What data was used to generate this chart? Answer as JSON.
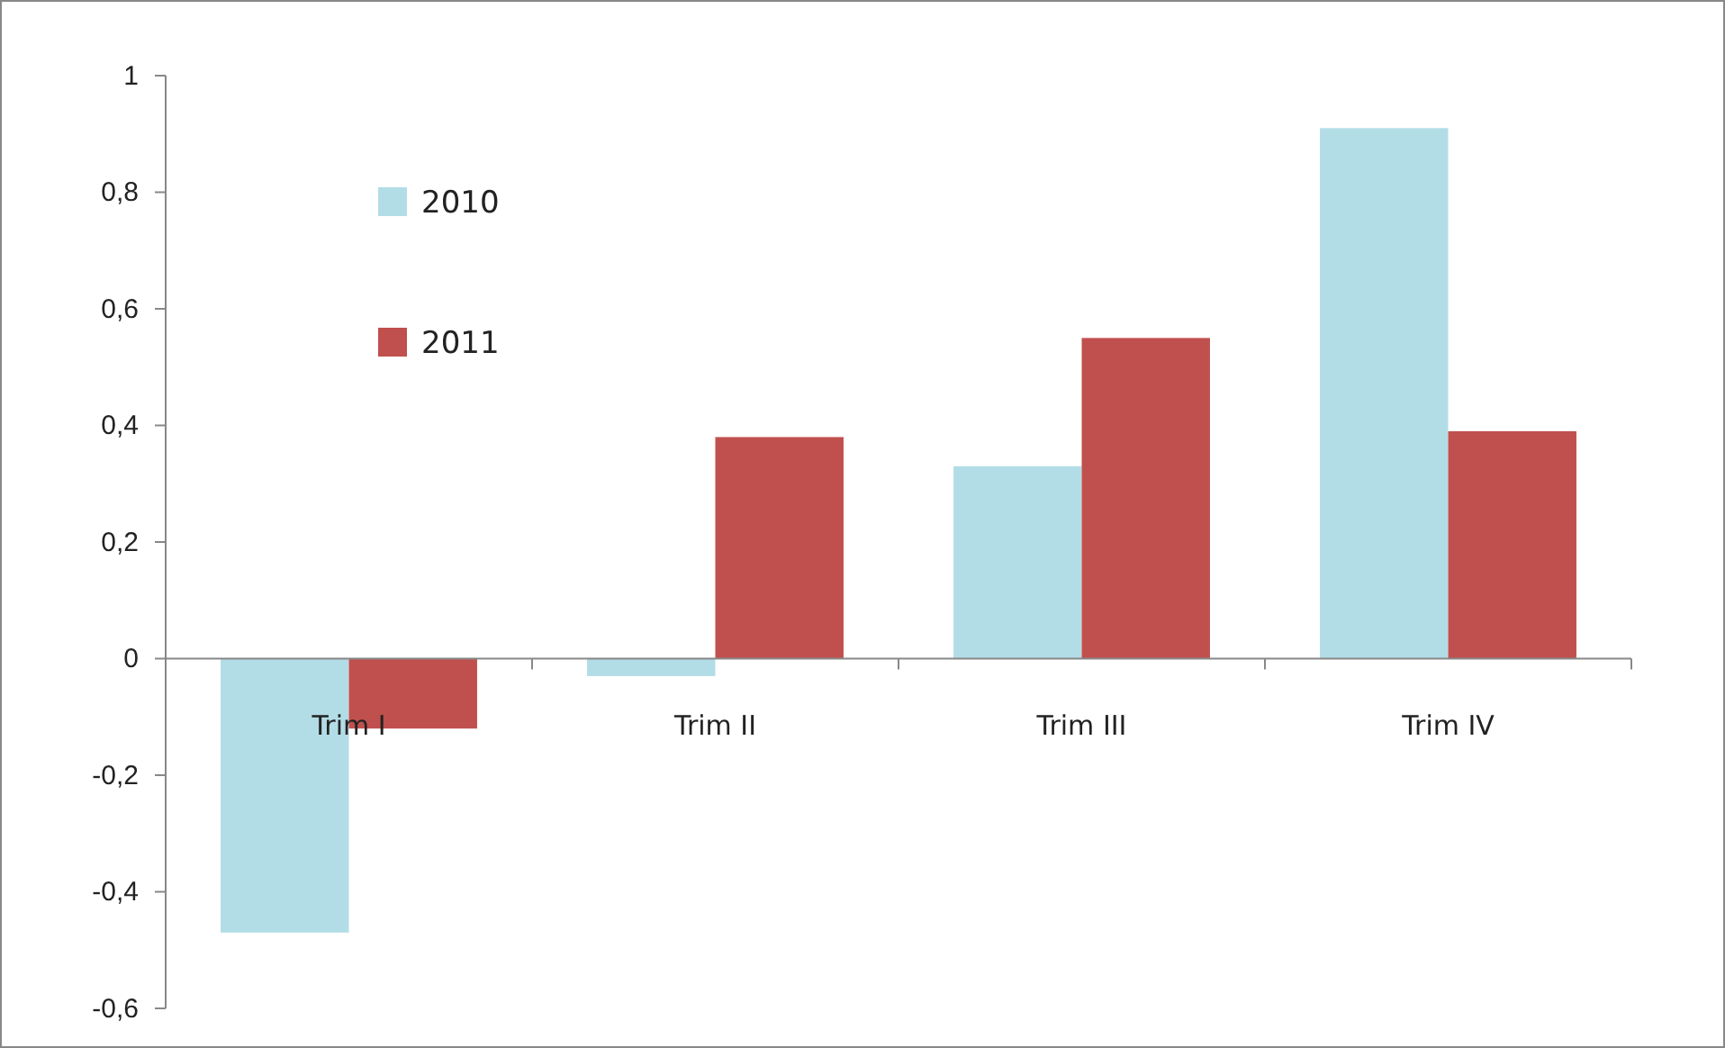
{
  "chart_data": {
    "type": "bar",
    "categories": [
      "Trim I",
      "Trim II",
      "Trim III",
      "Trim IV"
    ],
    "series": [
      {
        "name": "2010",
        "color": "#b3dde6",
        "values": [
          -0.47,
          -0.03,
          0.33,
          0.91
        ]
      },
      {
        "name": "2011",
        "color": "#c0504d",
        "values": [
          -0.12,
          0.38,
          0.55,
          0.39
        ]
      }
    ],
    "ylim": [
      -0.6,
      1
    ],
    "yticks": [
      {
        "value": -0.6,
        "label": "-0,6"
      },
      {
        "value": -0.4,
        "label": "-0,4"
      },
      {
        "value": -0.2,
        "label": "-0,2"
      },
      0,
      {
        "value": 0.2,
        "label": "0,2"
      },
      {
        "value": 0.4,
        "label": "0,4"
      },
      {
        "value": 0.6,
        "label": "0,6"
      },
      {
        "value": 0.8,
        "label": "0,8"
      },
      1
    ],
    "grid": false,
    "legend": "top left"
  }
}
